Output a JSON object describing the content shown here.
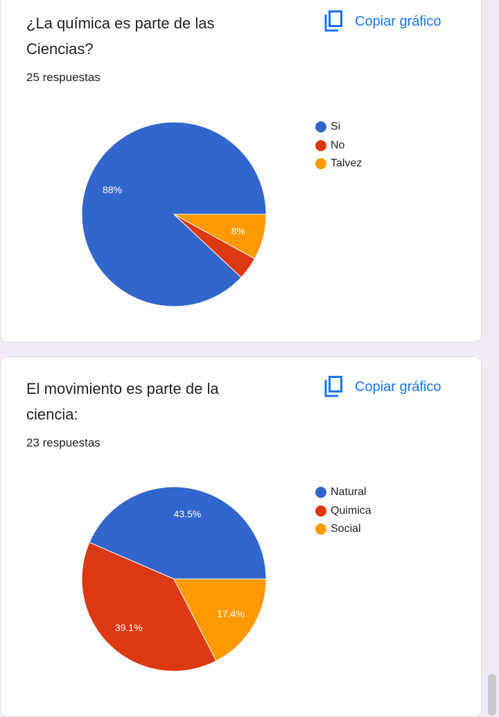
{
  "charts": [
    {
      "question": "¿La química es parte de las Ciencias?",
      "responses": "25 respuestas",
      "copy_label": "Copiar gráfico",
      "icon": "copy-icon"
    },
    {
      "question": " El movimiento es parte de la ciencia:",
      "responses": "23 respuestas",
      "copy_label": "Copiar gráfico",
      "icon": "copy-icon"
    }
  ],
  "chart_data": [
    {
      "type": "pie",
      "categories": [
        "Si",
        "No",
        "Talvez"
      ],
      "values": [
        88,
        4,
        8
      ],
      "data_labels": [
        "88%",
        "",
        "8%"
      ],
      "colors": [
        "#3366cc",
        "#dc3912",
        "#ff9900"
      ],
      "legend": "right"
    },
    {
      "type": "pie",
      "categories": [
        "Natural",
        "Quimica",
        "Social"
      ],
      "values": [
        43.5,
        39.1,
        17.4
      ],
      "data_labels": [
        "43.5%",
        "39.1%",
        "17.4%"
      ],
      "colors": [
        "#3366cc",
        "#dc3912",
        "#ff9900"
      ],
      "legend": "right"
    }
  ]
}
